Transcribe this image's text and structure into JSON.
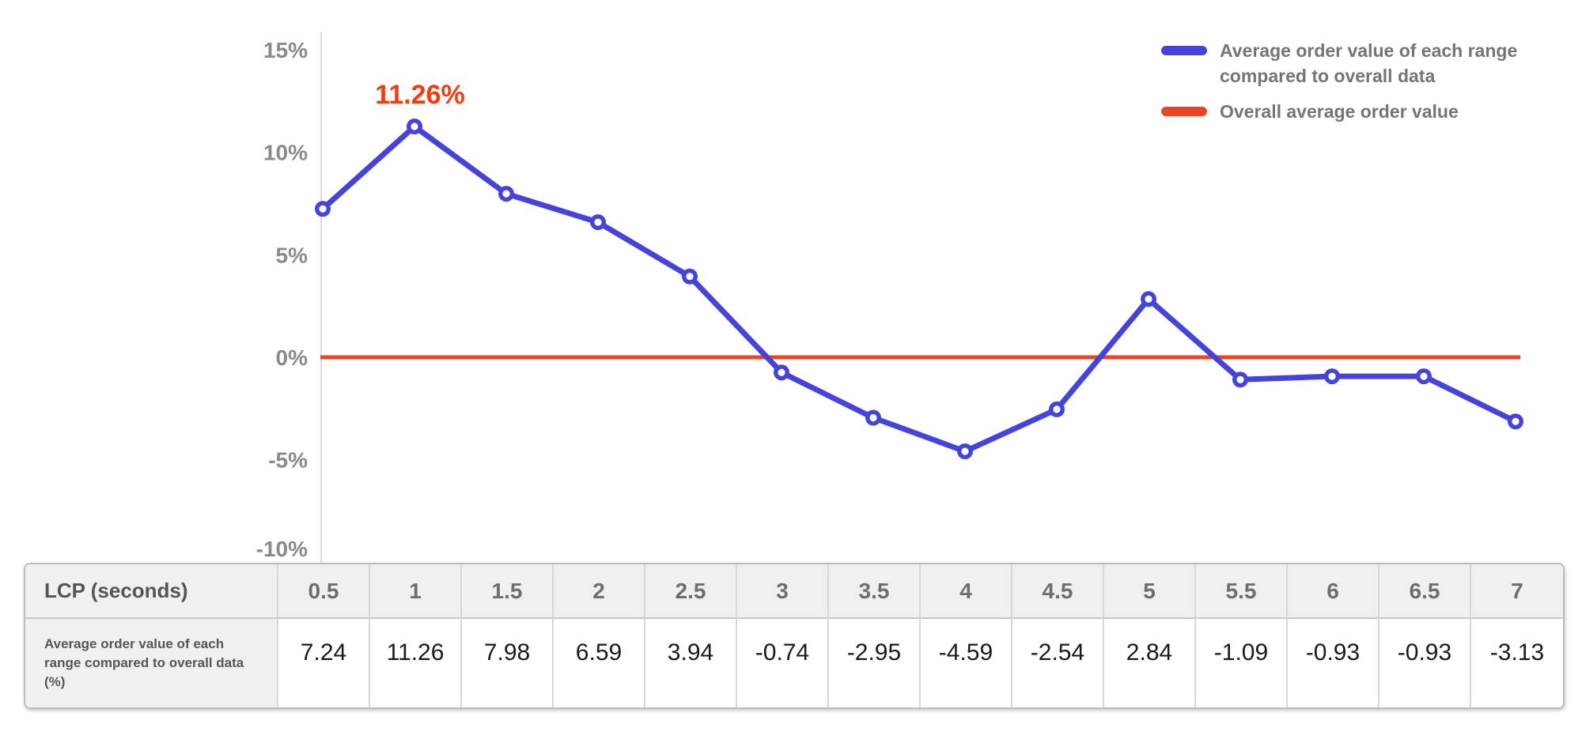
{
  "colors": {
    "series_blue": "#4544da",
    "reference_red": "#ec4524",
    "annotation_red": "#f43c10",
    "axis_line": "#dcdcdc",
    "tick_text": "#8a8a8a",
    "legend_text": "#757575"
  },
  "legend": {
    "items": [
      {
        "label": "Average order value of each range compared to overall data",
        "color": "#4544da"
      },
      {
        "label": "Overall average order value",
        "color": "#ec4524"
      }
    ]
  },
  "chart_data": {
    "type": "line",
    "x": [
      0.5,
      1,
      1.5,
      2,
      2.5,
      3,
      3.5,
      4,
      4.5,
      5,
      5.5,
      6,
      6.5,
      7
    ],
    "xlabel": "LCP (seconds)",
    "ylabel": "",
    "ylim": [
      -10,
      15
    ],
    "grid": false,
    "legend_position": "top-right",
    "yticks": [
      {
        "value": 15,
        "label": "15%"
      },
      {
        "value": 10,
        "label": "10%"
      },
      {
        "value": 5,
        "label": "5%"
      },
      {
        "value": 0,
        "label": "0%"
      },
      {
        "value": -5,
        "label": "-5%"
      },
      {
        "value": -10,
        "label": "-10%"
      }
    ],
    "series": [
      {
        "name": "Average order value of each range compared to overall data",
        "type": "line",
        "color": "#4544da",
        "values": [
          7.24,
          11.26,
          7.98,
          6.59,
          3.94,
          -0.74,
          -2.95,
          -4.59,
          -2.54,
          2.84,
          -1.09,
          -0.93,
          -0.93,
          -3.13
        ]
      },
      {
        "name": "Overall average order value",
        "type": "reference_line",
        "color": "#ec4524",
        "value": 0
      }
    ],
    "annotation": {
      "text": "11.26%",
      "series_index": 0,
      "point_index": 1
    }
  },
  "table": {
    "corner_label": "LCP (seconds)",
    "row_label": "Average order value of each range compared to overall data (%)",
    "columns": [
      "0.5",
      "1",
      "1.5",
      "2",
      "2.5",
      "3",
      "3.5",
      "4",
      "4.5",
      "5",
      "5.5",
      "6",
      "6.5",
      "7"
    ],
    "values": [
      "7.24",
      "11.26",
      "7.98",
      "6.59",
      "3.94",
      "-0.74",
      "-2.95",
      "-4.59",
      "-2.54",
      "2.84",
      "-1.09",
      "-0.93",
      "-0.93",
      "-3.13"
    ]
  }
}
